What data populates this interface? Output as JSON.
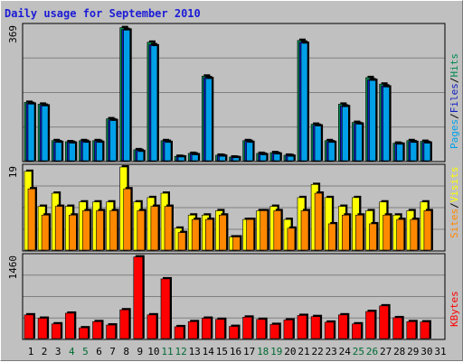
{
  "title": "Daily usage for September 2010",
  "colors": {
    "pages": "#00a0e8",
    "files": "#1020c0",
    "hits": "#008a50",
    "visits": "#ffff00",
    "sites": "#ff8800",
    "kbytes": "#ff0000",
    "weekend_label": "#006b33",
    "weekday_label": "#000000",
    "panel_bg": "#c0c0c0",
    "grid": "#808080"
  },
  "chart_data": [
    {
      "type": "bar",
      "panel": "hits-files-pages",
      "y_axis_max_label": "369",
      "ylim": [
        0,
        369
      ],
      "legend": [
        "Pages",
        "/",
        "Files",
        "/",
        "Hits"
      ],
      "categories": [
        "1",
        "2",
        "3",
        "4",
        "5",
        "6",
        "7",
        "8",
        "9",
        "10",
        "11",
        "12",
        "13",
        "14",
        "15",
        "16",
        "17",
        "18",
        "19",
        "20",
        "21",
        "22",
        "23",
        "24",
        "25",
        "26",
        "27",
        "28",
        "29",
        "30",
        "31"
      ],
      "series": [
        {
          "name": "Hits",
          "values": [
            160,
            155,
            55,
            52,
            55,
            55,
            115,
            365,
            30,
            325,
            55,
            12,
            20,
            232,
            15,
            10,
            55,
            20,
            22,
            15,
            330,
            100,
            55,
            155,
            105,
            228,
            210,
            48,
            55,
            53,
            0
          ]
        },
        {
          "name": "Files",
          "values": [
            157,
            152,
            52,
            50,
            53,
            53,
            112,
            360,
            28,
            318,
            53,
            11,
            18,
            228,
            14,
            9,
            53,
            18,
            20,
            14,
            325,
            97,
            52,
            150,
            102,
            222,
            205,
            46,
            52,
            50,
            0
          ]
        },
        {
          "name": "Pages",
          "values": [
            155,
            150,
            50,
            48,
            50,
            50,
            110,
            358,
            25,
            315,
            50,
            10,
            16,
            225,
            12,
            8,
            50,
            16,
            18,
            12,
            322,
            95,
            50,
            148,
            100,
            220,
            202,
            45,
            50,
            48,
            0
          ]
        }
      ]
    },
    {
      "type": "bar",
      "panel": "visits-sites",
      "y_axis_max_label": "19",
      "ylim": [
        0,
        19
      ],
      "legend": [
        "Sites",
        "/",
        "Visits"
      ],
      "categories": [
        "1",
        "2",
        "3",
        "4",
        "5",
        "6",
        "7",
        "8",
        "9",
        "10",
        "11",
        "12",
        "13",
        "14",
        "15",
        "16",
        "17",
        "18",
        "19",
        "20",
        "21",
        "22",
        "23",
        "24",
        "25",
        "26",
        "27",
        "28",
        "29",
        "30",
        "31"
      ],
      "series": [
        {
          "name": "Visits",
          "values": [
            18,
            10,
            13,
            10,
            11,
            11,
            11,
            19,
            11,
            12,
            13,
            5,
            8,
            8,
            9,
            3,
            7,
            9,
            10,
            7,
            12,
            15,
            12,
            10,
            12,
            9,
            11,
            8,
            9,
            11,
            0
          ]
        },
        {
          "name": "Sites",
          "values": [
            14,
            8,
            10,
            8,
            9,
            9,
            9,
            14,
            9,
            10,
            10,
            4,
            7,
            7,
            8,
            3,
            7,
            9,
            9,
            5,
            9,
            13,
            6,
            8,
            8,
            6,
            8,
            7,
            7,
            9,
            0
          ]
        }
      ]
    },
    {
      "type": "bar",
      "panel": "kbytes",
      "y_axis_max_label": "1460",
      "ylim": [
        0,
        1460
      ],
      "legend": [
        "KBytes"
      ],
      "categories": [
        "1",
        "2",
        "3",
        "4",
        "5",
        "6",
        "7",
        "8",
        "9",
        "10",
        "11",
        "12",
        "13",
        "14",
        "15",
        "16",
        "17",
        "18",
        "19",
        "20",
        "21",
        "22",
        "23",
        "24",
        "25",
        "26",
        "27",
        "28",
        "29",
        "30",
        "31"
      ],
      "series": [
        {
          "name": "KBytes",
          "values": [
            420,
            360,
            260,
            450,
            190,
            300,
            240,
            510,
            1450,
            420,
            1060,
            210,
            300,
            360,
            340,
            215,
            380,
            340,
            250,
            330,
            410,
            390,
            290,
            420,
            260,
            480,
            580,
            370,
            300,
            295,
            0
          ]
        }
      ]
    }
  ],
  "x_axis": {
    "labels": [
      "1",
      "2",
      "3",
      "4",
      "5",
      "6",
      "7",
      "8",
      "9",
      "10",
      "11",
      "12",
      "13",
      "14",
      "15",
      "16",
      "17",
      "18",
      "19",
      "20",
      "21",
      "22",
      "23",
      "24",
      "25",
      "26",
      "27",
      "28",
      "29",
      "30",
      "31"
    ],
    "weekend_days": [
      "4",
      "5",
      "11",
      "12",
      "18",
      "19",
      "25",
      "26"
    ]
  }
}
